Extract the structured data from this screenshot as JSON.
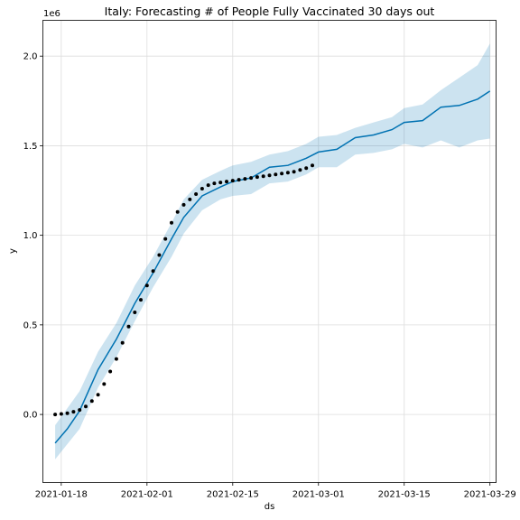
{
  "chart_data": {
    "type": "line",
    "title": "Italy: Forecasting # of People Fully Vaccinated 30 days out",
    "xlabel": "ds",
    "ylabel": "y",
    "y_offset_label": "1e6",
    "x_ticks": [
      "2021-01-18",
      "2021-02-01",
      "2021-02-15",
      "2021-03-01",
      "2021-03-15",
      "2021-03-29"
    ],
    "y_ticks": [
      "0.0",
      "0.5",
      "1.0",
      "1.5",
      "2.0"
    ],
    "x_range": [
      "2021-01-15",
      "2021-03-30"
    ],
    "y_range": [
      -380000,
      2200000
    ],
    "grid": true,
    "colors": {
      "forecast_line": "#0072B2",
      "uncertainty_band": "#0072B2",
      "observed_points": "#000000"
    },
    "series": [
      {
        "kind": "observed",
        "x": [
          "2021-01-17",
          "2021-01-18",
          "2021-01-19",
          "2021-01-20",
          "2021-01-21",
          "2021-01-22",
          "2021-01-23",
          "2021-01-24",
          "2021-01-25",
          "2021-01-26",
          "2021-01-27",
          "2021-01-28",
          "2021-01-29",
          "2021-01-30",
          "2021-01-31",
          "2021-02-01",
          "2021-02-02",
          "2021-02-03",
          "2021-02-04",
          "2021-02-05",
          "2021-02-06",
          "2021-02-07",
          "2021-02-08",
          "2021-02-09",
          "2021-02-10",
          "2021-02-11",
          "2021-02-12",
          "2021-02-13",
          "2021-02-14",
          "2021-02-15",
          "2021-02-16",
          "2021-02-17",
          "2021-02-18",
          "2021-02-19",
          "2021-02-20",
          "2021-02-21",
          "2021-02-22",
          "2021-02-23",
          "2021-02-24",
          "2021-02-25",
          "2021-02-26",
          "2021-02-27",
          "2021-02-28"
        ],
        "values": [
          0,
          3000,
          7000,
          15000,
          25000,
          45000,
          75000,
          110000,
          170000,
          240000,
          310000,
          400000,
          490000,
          570000,
          640000,
          720000,
          800000,
          890000,
          980000,
          1070000,
          1130000,
          1170000,
          1200000,
          1230000,
          1260000,
          1280000,
          1290000,
          1295000,
          1300000,
          1305000,
          1310000,
          1315000,
          1320000,
          1325000,
          1330000,
          1335000,
          1340000,
          1345000,
          1350000,
          1355000,
          1365000,
          1375000,
          1390000
        ]
      },
      {
        "kind": "forecast",
        "x": [
          "2021-01-17",
          "2021-01-19",
          "2021-01-21",
          "2021-01-24",
          "2021-01-27",
          "2021-01-30",
          "2021-02-02",
          "2021-02-05",
          "2021-02-07",
          "2021-02-10",
          "2021-02-13",
          "2021-02-15",
          "2021-02-18",
          "2021-02-21",
          "2021-02-24",
          "2021-02-27",
          "2021-03-01",
          "2021-03-04",
          "2021-03-07",
          "2021-03-10",
          "2021-03-13",
          "2021-03-15",
          "2021-03-18",
          "2021-03-21",
          "2021-03-24",
          "2021-03-27",
          "2021-03-29"
        ],
        "values": [
          -160000,
          -80000,
          20000,
          250000,
          420000,
          620000,
          790000,
          980000,
          1100000,
          1220000,
          1270000,
          1300000,
          1320000,
          1380000,
          1390000,
          1430000,
          1465000,
          1480000,
          1545000,
          1560000,
          1590000,
          1630000,
          1640000,
          1715000,
          1725000,
          1760000,
          1805000
        ]
      },
      {
        "kind": "forecast_upper",
        "x": [
          "2021-01-17",
          "2021-01-21",
          "2021-01-24",
          "2021-01-27",
          "2021-01-30",
          "2021-02-02",
          "2021-02-05",
          "2021-02-07",
          "2021-02-10",
          "2021-02-13",
          "2021-02-15",
          "2021-02-18",
          "2021-02-21",
          "2021-02-24",
          "2021-02-27",
          "2021-03-01",
          "2021-03-04",
          "2021-03-07",
          "2021-03-10",
          "2021-03-13",
          "2021-03-15",
          "2021-03-18",
          "2021-03-21",
          "2021-03-24",
          "2021-03-27",
          "2021-03-29"
        ],
        "values": [
          -60000,
          130000,
          350000,
          510000,
          720000,
          880000,
          1070000,
          1200000,
          1310000,
          1360000,
          1390000,
          1410000,
          1450000,
          1470000,
          1510000,
          1550000,
          1560000,
          1600000,
          1630000,
          1660000,
          1710000,
          1730000,
          1810000,
          1880000,
          1950000,
          2070000
        ]
      },
      {
        "kind": "forecast_lower",
        "x": [
          "2021-01-17",
          "2021-01-21",
          "2021-01-24",
          "2021-01-27",
          "2021-01-30",
          "2021-02-02",
          "2021-02-05",
          "2021-02-07",
          "2021-02-10",
          "2021-02-13",
          "2021-02-15",
          "2021-02-18",
          "2021-02-21",
          "2021-02-24",
          "2021-02-27",
          "2021-03-01",
          "2021-03-04",
          "2021-03-07",
          "2021-03-10",
          "2021-03-13",
          "2021-03-15",
          "2021-03-18",
          "2021-03-21",
          "2021-03-24",
          "2021-03-27",
          "2021-03-29"
        ],
        "values": [
          -250000,
          -80000,
          150000,
          320000,
          520000,
          710000,
          880000,
          1010000,
          1140000,
          1200000,
          1220000,
          1230000,
          1290000,
          1300000,
          1340000,
          1380000,
          1380000,
          1450000,
          1460000,
          1480000,
          1510000,
          1490000,
          1530000,
          1490000,
          1530000,
          1540000
        ]
      }
    ]
  }
}
